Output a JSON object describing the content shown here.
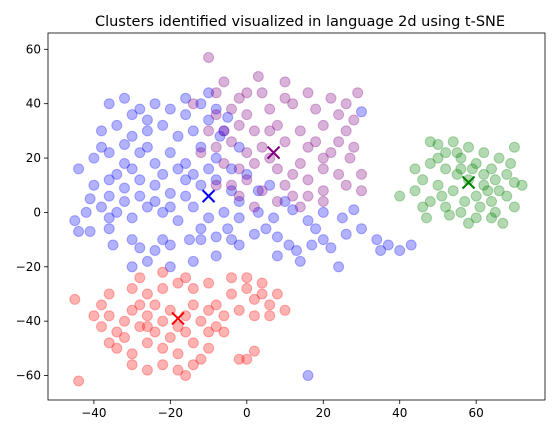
{
  "chart_data": {
    "type": "scatter",
    "title": "Clusters identified visualized in language 2d using t-SNE",
    "xlabel": "",
    "ylabel": "",
    "xlim": [
      -52,
      78
    ],
    "ylim": [
      -69,
      66
    ],
    "xticks": [
      -40,
      -20,
      0,
      20,
      40,
      60
    ],
    "yticks": [
      -60,
      -40,
      -20,
      0,
      20,
      40,
      60
    ],
    "grid": false,
    "legend": "none",
    "point_alpha": 0.3,
    "series": [
      {
        "color": "#0000ff",
        "centroid": [
          -10,
          6
        ],
        "points": [
          [
            -41,
            -7
          ],
          [
            -36,
            -6
          ],
          [
            -35,
            -12
          ],
          [
            -30,
            -10
          ],
          [
            -28,
            -13
          ],
          [
            -24,
            -14
          ],
          [
            -22,
            -10
          ],
          [
            -20,
            -12
          ],
          [
            -15,
            -10
          ],
          [
            -12,
            -10
          ],
          [
            -8,
            -9
          ],
          [
            -5,
            -6
          ],
          [
            -4,
            -10
          ],
          [
            -2,
            -12
          ],
          [
            2,
            -8
          ],
          [
            5,
            -6
          ],
          [
            8,
            -9
          ],
          [
            11,
            -12
          ],
          [
            13,
            -14
          ],
          [
            17,
            -12
          ],
          [
            20,
            -10
          ],
          [
            22,
            -13
          ],
          [
            26,
            -8
          ],
          [
            30,
            -6
          ],
          [
            34,
            -10
          ],
          [
            37,
            -12
          ],
          [
            40,
            -14
          ],
          [
            43,
            -12
          ],
          [
            -42,
            0
          ],
          [
            -38,
            2
          ],
          [
            -34,
            0
          ],
          [
            -30,
            -2
          ],
          [
            -26,
            2
          ],
          [
            -22,
            0
          ],
          [
            -18,
            -3
          ],
          [
            -14,
            2
          ],
          [
            -10,
            -2
          ],
          [
            -6,
            0
          ],
          [
            -2,
            -2
          ],
          [
            3,
            0
          ],
          [
            7,
            -2
          ],
          [
            12,
            1
          ],
          [
            16,
            -3
          ],
          [
            20,
            0
          ],
          [
            25,
            -2
          ],
          [
            28,
            1
          ],
          [
            -40,
            10
          ],
          [
            -36,
            12
          ],
          [
            -32,
            9
          ],
          [
            -28,
            12
          ],
          [
            -24,
            10
          ],
          [
            -20,
            7
          ],
          [
            -16,
            12
          ],
          [
            -12,
            10
          ],
          [
            -8,
            12
          ],
          [
            -4,
            8
          ],
          [
            -44,
            16
          ],
          [
            -40,
            20
          ],
          [
            -36,
            22
          ],
          [
            -32,
            18
          ],
          [
            -28,
            22
          ],
          [
            -24,
            18
          ],
          [
            -20,
            22
          ],
          [
            -16,
            18
          ],
          [
            -12,
            24
          ],
          [
            -8,
            20
          ],
          [
            -38,
            30
          ],
          [
            -34,
            32
          ],
          [
            -30,
            28
          ],
          [
            -26,
            30
          ],
          [
            -22,
            32
          ],
          [
            -18,
            28
          ],
          [
            -14,
            30
          ],
          [
            -10,
            34
          ],
          [
            -6,
            30
          ],
          [
            -36,
            40
          ],
          [
            -32,
            42
          ],
          [
            -28,
            38
          ],
          [
            -24,
            40
          ],
          [
            -20,
            38
          ],
          [
            -16,
            42
          ],
          [
            -12,
            40
          ],
          [
            -8,
            38
          ],
          [
            -32,
            25
          ],
          [
            -26,
            24
          ],
          [
            -18,
            16
          ],
          [
            -14,
            14
          ],
          [
            -10,
            16
          ],
          [
            -22,
            14
          ],
          [
            -30,
            16
          ],
          [
            -34,
            14
          ],
          [
            -38,
            24
          ],
          [
            -4,
            16
          ],
          [
            0,
            14
          ],
          [
            -2,
            24
          ],
          [
            -28,
            6
          ],
          [
            -24,
            4
          ],
          [
            -20,
            2
          ],
          [
            -16,
            6
          ],
          [
            -32,
            4
          ],
          [
            -36,
            6
          ],
          [
            3,
            8
          ],
          [
            -44,
            -7
          ],
          [
            16,
            -60
          ],
          [
            30,
            37
          ],
          [
            -26,
            -18
          ],
          [
            -20,
            -20
          ],
          [
            -14,
            -18
          ],
          [
            -8,
            -16
          ],
          [
            -30,
            -20
          ],
          [
            8,
            -16
          ],
          [
            14,
            -18
          ],
          [
            24,
            -20
          ],
          [
            35,
            -14
          ],
          [
            -5,
            35
          ],
          [
            -7,
            28
          ],
          [
            -45,
            -3
          ],
          [
            -41,
            5
          ],
          [
            -2,
            4
          ],
          [
            10,
            4
          ],
          [
            6,
            10
          ],
          [
            18,
            -6
          ],
          [
            -36,
            -2
          ],
          [
            -12,
            -6
          ],
          [
            -26,
            34
          ],
          [
            -16,
            36
          ],
          [
            -10,
            44
          ],
          [
            -30,
            36
          ]
        ]
      },
      {
        "color": "#800080",
        "centroid": [
          7,
          22
        ],
        "points": [
          [
            -10,
            57
          ],
          [
            3,
            50
          ],
          [
            -8,
            44
          ],
          [
            -2,
            42
          ],
          [
            4,
            44
          ],
          [
            10,
            42
          ],
          [
            16,
            44
          ],
          [
            22,
            42
          ],
          [
            29,
            44
          ],
          [
            -8,
            36
          ],
          [
            -4,
            38
          ],
          [
            0,
            36
          ],
          [
            6,
            38
          ],
          [
            12,
            40
          ],
          [
            18,
            38
          ],
          [
            24,
            36
          ],
          [
            28,
            34
          ],
          [
            -6,
            30
          ],
          [
            -2,
            32
          ],
          [
            2,
            30
          ],
          [
            8,
            32
          ],
          [
            14,
            30
          ],
          [
            20,
            32
          ],
          [
            26,
            30
          ],
          [
            -8,
            24
          ],
          [
            -4,
            26
          ],
          [
            0,
            22
          ],
          [
            4,
            24
          ],
          [
            10,
            26
          ],
          [
            16,
            24
          ],
          [
            22,
            22
          ],
          [
            27,
            20
          ],
          [
            -6,
            18
          ],
          [
            -2,
            16
          ],
          [
            2,
            18
          ],
          [
            8,
            16
          ],
          [
            14,
            18
          ],
          [
            20,
            16
          ],
          [
            24,
            14
          ],
          [
            -4,
            10
          ],
          [
            0,
            12
          ],
          [
            4,
            8
          ],
          [
            10,
            10
          ],
          [
            16,
            12
          ],
          [
            20,
            8
          ],
          [
            26,
            10
          ],
          [
            30,
            8
          ],
          [
            2,
            2
          ],
          [
            8,
            4
          ],
          [
            14,
            2
          ],
          [
            20,
            4
          ],
          [
            -2,
            6
          ],
          [
            12,
            6
          ],
          [
            6,
            20
          ],
          [
            18,
            26
          ],
          [
            24,
            26
          ],
          [
            -10,
            30
          ],
          [
            -12,
            22
          ],
          [
            -14,
            40
          ],
          [
            0,
            44
          ],
          [
            6,
            30
          ],
          [
            12,
            14
          ],
          [
            28,
            24
          ],
          [
            -8,
            10
          ],
          [
            10,
            48
          ],
          [
            16,
            6
          ],
          [
            20,
            20
          ],
          [
            30,
            14
          ],
          [
            -6,
            48
          ],
          [
            26,
            40
          ]
        ]
      },
      {
        "color": "#008000",
        "centroid": [
          58,
          11
        ],
        "points": [
          [
            50,
            25
          ],
          [
            52,
            22
          ],
          [
            54,
            26
          ],
          [
            56,
            20
          ],
          [
            58,
            24
          ],
          [
            60,
            18
          ],
          [
            62,
            22
          ],
          [
            64,
            16
          ],
          [
            66,
            20
          ],
          [
            70,
            24
          ],
          [
            48,
            18
          ],
          [
            52,
            16
          ],
          [
            55,
            14
          ],
          [
            58,
            12
          ],
          [
            62,
            10
          ],
          [
            65,
            12
          ],
          [
            68,
            14
          ],
          [
            72,
            10
          ],
          [
            46,
            12
          ],
          [
            50,
            10
          ],
          [
            54,
            8
          ],
          [
            60,
            6
          ],
          [
            64,
            4
          ],
          [
            68,
            6
          ],
          [
            70,
            2
          ],
          [
            48,
            4
          ],
          [
            52,
            2
          ],
          [
            56,
            0
          ],
          [
            60,
            -2
          ],
          [
            64,
            -2
          ],
          [
            67,
            -4
          ],
          [
            40,
            6
          ],
          [
            44,
            8
          ],
          [
            46,
            2
          ],
          [
            53,
            -1
          ],
          [
            57,
            4
          ],
          [
            62,
            14
          ],
          [
            50,
            20
          ],
          [
            56,
            16
          ],
          [
            66,
            8
          ],
          [
            44,
            16
          ],
          [
            58,
            -4
          ],
          [
            63,
            8
          ],
          [
            48,
            26
          ],
          [
            59,
            16
          ],
          [
            55,
            22
          ],
          [
            69,
            18
          ],
          [
            51,
            6
          ],
          [
            65,
            0
          ],
          [
            70,
            11
          ],
          [
            47,
            -2
          ],
          [
            61,
            2
          ]
        ]
      },
      {
        "color": "#ff0000",
        "centroid": [
          -18,
          -39
        ],
        "points": [
          [
            -45,
            -32
          ],
          [
            -44,
            -62
          ],
          [
            -38,
            -42
          ],
          [
            -36,
            -38
          ],
          [
            -34,
            -44
          ],
          [
            -32,
            -40
          ],
          [
            -30,
            -36
          ],
          [
            -28,
            -42
          ],
          [
            -26,
            -38
          ],
          [
            -24,
            -34
          ],
          [
            -22,
            -40
          ],
          [
            -20,
            -36
          ],
          [
            -18,
            -42
          ],
          [
            -16,
            -38
          ],
          [
            -14,
            -34
          ],
          [
            -12,
            -40
          ],
          [
            -10,
            -36
          ],
          [
            -34,
            -50
          ],
          [
            -30,
            -52
          ],
          [
            -26,
            -48
          ],
          [
            -22,
            -50
          ],
          [
            -18,
            -52
          ],
          [
            -14,
            -48
          ],
          [
            -10,
            -50
          ],
          [
            -30,
            -56
          ],
          [
            -26,
            -58
          ],
          [
            -22,
            -56
          ],
          [
            -18,
            -58
          ],
          [
            -14,
            -56
          ],
          [
            -16,
            -60
          ],
          [
            -36,
            -30
          ],
          [
            -30,
            -28
          ],
          [
            -26,
            -30
          ],
          [
            -22,
            -28
          ],
          [
            -18,
            -26
          ],
          [
            -14,
            -28
          ],
          [
            -10,
            -26
          ],
          [
            -28,
            -24
          ],
          [
            -22,
            -22
          ],
          [
            -16,
            -24
          ],
          [
            -8,
            -34
          ],
          [
            -4,
            -30
          ],
          [
            0,
            -28
          ],
          [
            2,
            -32
          ],
          [
            4,
            -30
          ],
          [
            6,
            -34
          ],
          [
            8,
            -30
          ],
          [
            10,
            -36
          ],
          [
            -2,
            -36
          ],
          [
            2,
            -38
          ],
          [
            6,
            -38
          ],
          [
            0,
            -24
          ],
          [
            4,
            -26
          ],
          [
            -4,
            -24
          ],
          [
            -6,
            -44
          ],
          [
            -10,
            -44
          ],
          [
            -12,
            -54
          ],
          [
            2,
            -51
          ],
          [
            0,
            -54
          ],
          [
            -2,
            -54
          ],
          [
            -40,
            -38
          ],
          [
            -38,
            -34
          ],
          [
            -24,
            -44
          ],
          [
            -20,
            -46
          ],
          [
            -28,
            -34
          ],
          [
            -8,
            -42
          ],
          [
            -6,
            -38
          ],
          [
            -32,
            -46
          ],
          [
            -16,
            -44
          ],
          [
            -26,
            -42
          ],
          [
            -36,
            -48
          ]
        ]
      }
    ]
  }
}
